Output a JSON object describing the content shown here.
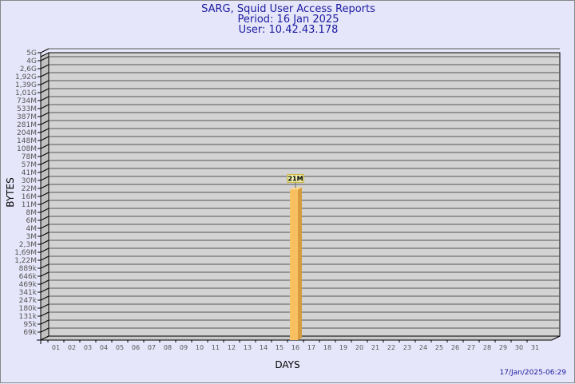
{
  "chart_data": {
    "type": "bar",
    "title": "SARG, Squid User Access Reports",
    "subtitle": [
      "Period: 16 Jan 2025",
      "User: 10.42.43.178"
    ],
    "xlabel": "DAYS",
    "ylabel": "BYTES",
    "y_scale": "log",
    "y_tick_labels": [
      "5G",
      "4G",
      "2,6G",
      "1,92G",
      "1,39G",
      "1,01G",
      "734M",
      "533M",
      "387M",
      "281M",
      "204M",
      "148M",
      "108M",
      "78M",
      "57M",
      "41M",
      "30M",
      "22M",
      "16M",
      "11M",
      "8M",
      "6M",
      "4M",
      "3M",
      "2,3M",
      "1,69M",
      "1,22M",
      "889k",
      "646k",
      "469k",
      "341k",
      "247k",
      "180k",
      "131k",
      "95k",
      "69k"
    ],
    "categories": [
      "01",
      "02",
      "03",
      "04",
      "05",
      "06",
      "07",
      "08",
      "09",
      "10",
      "11",
      "12",
      "13",
      "14",
      "15",
      "16",
      "17",
      "18",
      "19",
      "20",
      "21",
      "22",
      "23",
      "24",
      "25",
      "26",
      "27",
      "28",
      "29",
      "30",
      "31"
    ],
    "bars": [
      {
        "day": "16",
        "value": 21000000,
        "label": "21M"
      }
    ],
    "grid": true,
    "colors": {
      "bar": "#f8c060",
      "bar_side": "#d89c40",
      "wall": "#d3d3d3",
      "text": "#1a1aa0"
    }
  },
  "footer": "17/Jan/2025-06:29"
}
